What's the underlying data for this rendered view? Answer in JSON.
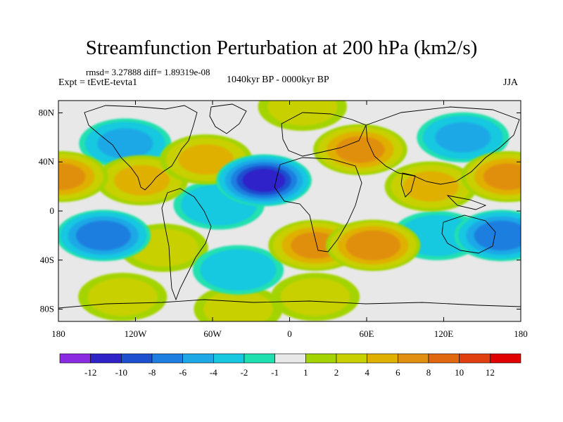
{
  "title": "Streamfunction Perturbation at 200 hPa (km2/s)",
  "stats": "rmsd= 3.27888  diff= 1.89319e-08",
  "experiment": "Expt = tEvtE-tevta1",
  "period": "1040kyr BP - 0000kyr BP",
  "season": "JJA",
  "axes": {
    "lat_ticks": [
      "80N",
      "40N",
      "0",
      "40S",
      "80S"
    ],
    "lat_values": [
      80,
      40,
      0,
      -40,
      -80
    ],
    "lon_ticks": [
      "180",
      "120W",
      "60W",
      "0",
      "60E",
      "120E",
      "180"
    ],
    "lon_values": [
      -180,
      -120,
      -60,
      0,
      60,
      120,
      180
    ]
  },
  "colorbar": {
    "labels": [
      "-12",
      "-10",
      "-8",
      "-6",
      "-4",
      "-2",
      "-1",
      "1",
      "2",
      "4",
      "6",
      "8",
      "10",
      "12"
    ],
    "colors": [
      "#8a2be2",
      "#2f23c8",
      "#1e4fcf",
      "#1e7fe0",
      "#1ea8e6",
      "#17c8e0",
      "#21e0b0",
      "#e8e8e8",
      "#a4d400",
      "#c8d000",
      "#e0b000",
      "#e08f10",
      "#e0680e",
      "#e04010",
      "#e00000"
    ]
  },
  "chart_data": {
    "type": "heatmap",
    "title": "Streamfunction Perturbation at 200 hPa (km2/s)",
    "xlim": [
      -180,
      180
    ],
    "ylim": [
      -90,
      90
    ],
    "anomaly_centers": [
      {
        "lon": -178,
        "lat": 28,
        "value": 6
      },
      {
        "lon": -128,
        "lat": 55,
        "value": -4
      },
      {
        "lon": -115,
        "lat": 25,
        "value": 4
      },
      {
        "lon": -145,
        "lat": -20,
        "value": -7
      },
      {
        "lon": -98,
        "lat": -30,
        "value": 2
      },
      {
        "lon": -65,
        "lat": 42,
        "value": 4
      },
      {
        "lon": -20,
        "lat": 25,
        "value": -10
      },
      {
        "lon": -55,
        "lat": 5,
        "value": -3
      },
      {
        "lon": -40,
        "lat": -48,
        "value": -3
      },
      {
        "lon": 55,
        "lat": 50,
        "value": 6
      },
      {
        "lon": 20,
        "lat": -28,
        "value": 6
      },
      {
        "lon": 65,
        "lat": -28,
        "value": 7
      },
      {
        "lon": 115,
        "lat": -20,
        "value": -3
      },
      {
        "lon": 165,
        "lat": -20,
        "value": -7
      },
      {
        "lon": 170,
        "lat": 28,
        "value": 6
      },
      {
        "lon": 110,
        "lat": 20,
        "value": 4
      },
      {
        "lon": 135,
        "lat": 60,
        "value": -4
      },
      {
        "lon": 20,
        "lat": -70,
        "value": 2
      },
      {
        "lon": -130,
        "lat": -70,
        "value": 2
      },
      {
        "lon": 10,
        "lat": 85,
        "value": 2
      },
      {
        "lon": -40,
        "lat": -80,
        "value": 2
      }
    ]
  }
}
